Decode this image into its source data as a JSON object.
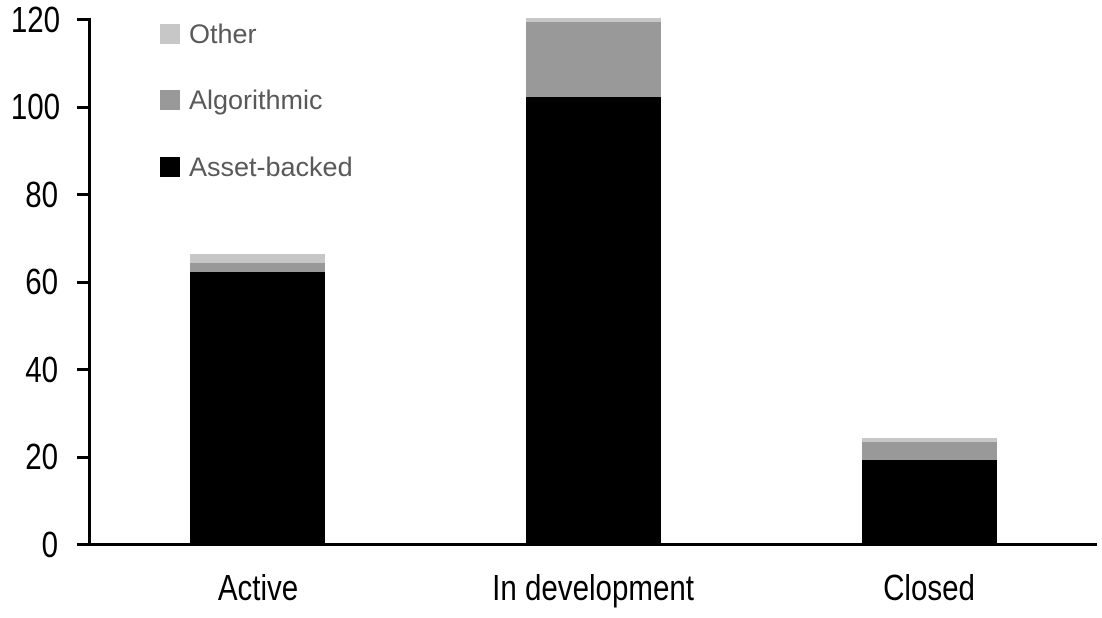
{
  "chart_data": {
    "type": "bar",
    "subtype": "stacked-vertical",
    "title": "",
    "xlabel": "",
    "ylabel": "",
    "categories": [
      "Active",
      "In development",
      "Closed"
    ],
    "series": [
      {
        "name": "Other",
        "color": "#c7c7c7",
        "values": [
          2,
          1,
          1
        ]
      },
      {
        "name": "Algorithmic",
        "color": "#999999",
        "values": [
          2,
          17,
          4
        ]
      },
      {
        "name": "Asset-backed",
        "color": "#000000",
        "values": [
          62,
          102,
          19
        ]
      }
    ],
    "stack_totals": [
      66,
      120,
      24
    ],
    "y_axis": {
      "min": 0,
      "max": 120,
      "tick_step": 20,
      "ticks": [
        0,
        20,
        40,
        60,
        80,
        100,
        120
      ]
    },
    "grid": false,
    "legend_position": "top-left",
    "colors": {
      "axis": "#000000",
      "tick_label_text": "#000000",
      "category_label_text": "#000000",
      "legend_text": "#595959",
      "background": "#ffffff"
    }
  }
}
